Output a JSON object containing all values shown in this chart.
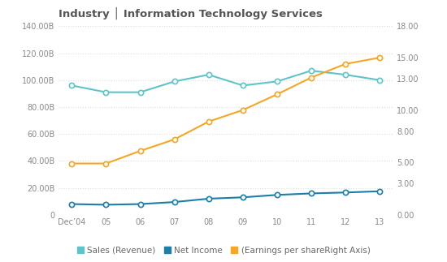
{
  "title": "Industry │ Information Technology Services",
  "years": [
    "Dec’04",
    "05",
    "06",
    "07",
    "08",
    "09",
    "10",
    "11",
    "12",
    "13"
  ],
  "revenue": [
    96,
    91,
    91,
    99,
    104,
    96,
    99,
    107,
    104,
    100
  ],
  "net_income": [
    8,
    7.5,
    8,
    9.5,
    12,
    13,
    14.8,
    15.9,
    16.6,
    17.5
  ],
  "eps": [
    4.9,
    4.9,
    6.1,
    7.2,
    8.9,
    10.0,
    11.5,
    13.1,
    14.4,
    15.0
  ],
  "revenue_color": "#5DC5C8",
  "net_income_color": "#1B7FA8",
  "eps_color": "#F5A623",
  "background_color": "#FFFFFF",
  "grid_color": "#DDDDDD",
  "left_ylim": [
    0,
    140
  ],
  "right_ylim": [
    0,
    18
  ],
  "left_yticks": [
    0,
    20,
    40,
    60,
    80,
    100,
    120,
    140
  ],
  "left_ytick_labels": [
    "0",
    "20.00B",
    "40.00B",
    "60.00B",
    "80.00B",
    "100.00B",
    "120.00B",
    "140.00B"
  ],
  "right_yticks": [
    0,
    3,
    5,
    8,
    10,
    13,
    15,
    18
  ],
  "right_ytick_labels": [
    "0.00",
    "3.00",
    "5.00",
    "8.00",
    "10.00",
    "13.00",
    "15.00",
    "18.00"
  ],
  "legend_labels": [
    "Sales (Revenue)",
    "Net Income",
    "(Earnings per shareRight Axis)"
  ],
  "marker": "o",
  "linewidth": 1.5,
  "markersize": 4.5
}
